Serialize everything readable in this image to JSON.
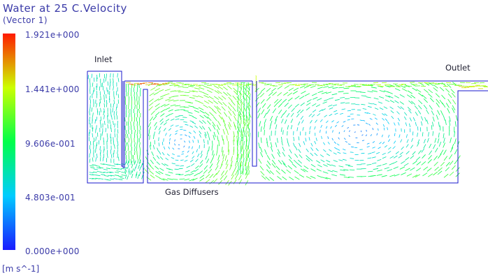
{
  "title": "Water at 25 C.Velocity",
  "subtitle": "(Vector 1)",
  "legend": {
    "ticks": [
      "1.921e+000",
      "1.441e+000",
      "9.606e-001",
      "4.803e-001",
      "0.000e+000"
    ],
    "units": "[m s^-1]",
    "colors": [
      "#0000ff",
      "#00c8ff",
      "#00ff66",
      "#ccff00",
      "#ff0000"
    ]
  },
  "labels": {
    "inlet": "Inlet",
    "outlet": "Outlet",
    "gas_diffusers": "Gas Diffusers"
  },
  "colors": {
    "outline": "#1a1acc",
    "text": "#3a3aa8"
  }
}
